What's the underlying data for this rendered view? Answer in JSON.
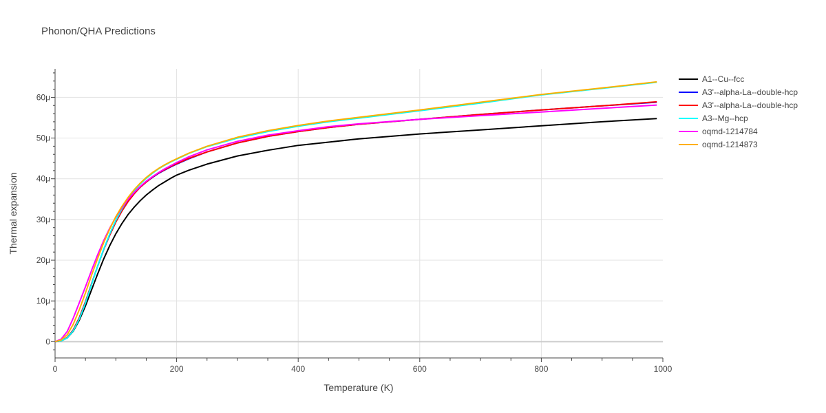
{
  "chart_data": {
    "type": "line",
    "title": "Phonon/QHA Predictions",
    "xlabel": "Temperature (K)",
    "ylabel": "Thermal expansion",
    "xlim": [
      0,
      1000
    ],
    "ylim": [
      -4,
      67
    ],
    "x_ticks": [
      0,
      200,
      400,
      600,
      800,
      1000
    ],
    "x_tick_labels": [
      "0",
      "200",
      "400",
      "600",
      "800",
      "1000"
    ],
    "y_ticks": [
      0,
      10,
      20,
      30,
      40,
      50,
      60
    ],
    "y_tick_labels": [
      "0",
      "10μ",
      "20μ",
      "30μ",
      "40μ",
      "50μ",
      "60μ"
    ],
    "y_unit": "1e-6 per K (μ)",
    "grid": true,
    "legend_position": "right",
    "x": [
      0,
      10,
      20,
      30,
      40,
      50,
      60,
      70,
      80,
      90,
      100,
      110,
      120,
      130,
      140,
      150,
      160,
      170,
      180,
      190,
      200,
      220,
      250,
      300,
      350,
      400,
      450,
      500,
      600,
      700,
      800,
      900,
      990
    ],
    "series": [
      {
        "name": "A1--Cu--fcc",
        "color": "#000000",
        "values": [
          0,
          0.2,
          0.9,
          2.6,
          5.3,
          8.8,
          12.7,
          16.6,
          20.3,
          23.6,
          26.5,
          29.0,
          31.2,
          33.0,
          34.6,
          36.0,
          37.2,
          38.3,
          39.2,
          40.1,
          40.9,
          42.1,
          43.6,
          45.6,
          47.0,
          48.2,
          49.0,
          49.8,
          51.0,
          52.0,
          53.0,
          54.0,
          54.8
        ]
      },
      {
        "name": "A3'--alpha-La--double-hcp",
        "color": "#0000ff",
        "values": [
          0,
          0.2,
          1.0,
          2.9,
          5.9,
          9.8,
          14.2,
          18.5,
          22.6,
          26.2,
          29.4,
          32.1,
          34.4,
          36.3,
          37.9,
          39.2,
          40.3,
          41.3,
          42.1,
          42.9,
          43.6,
          44.9,
          46.6,
          48.8,
          50.4,
          51.6,
          52.6,
          53.4,
          54.6,
          55.8,
          56.9,
          57.9,
          58.8
        ]
      },
      {
        "name": "A3'--alpha-La--double-hcp",
        "color": "#ff0000",
        "values": [
          0,
          0.2,
          1.0,
          2.9,
          5.9,
          9.8,
          14.2,
          18.5,
          22.6,
          26.2,
          29.4,
          32.1,
          34.4,
          36.3,
          37.9,
          39.2,
          40.4,
          41.4,
          42.2,
          43.0,
          43.7,
          45.0,
          46.6,
          48.8,
          50.4,
          51.6,
          52.6,
          53.4,
          54.6,
          55.8,
          56.9,
          57.9,
          58.9
        ]
      },
      {
        "name": "A3--Mg--hcp",
        "color": "#00ffff",
        "values": [
          0,
          0.2,
          0.9,
          2.7,
          5.6,
          9.5,
          14.0,
          18.5,
          22.7,
          26.5,
          29.8,
          32.6,
          35.0,
          37.0,
          38.7,
          40.1,
          41.3,
          42.4,
          43.3,
          44.1,
          44.8,
          46.2,
          47.9,
          50.0,
          51.6,
          52.9,
          54.0,
          54.9,
          56.7,
          58.6,
          60.6,
          62.2,
          63.7
        ]
      },
      {
        "name": "oqmd-1214784",
        "color": "#ff00ff",
        "values": [
          0,
          0.6,
          2.5,
          5.8,
          9.6,
          13.5,
          17.5,
          21.3,
          24.8,
          27.9,
          30.6,
          32.9,
          34.9,
          36.6,
          38.1,
          39.4,
          40.5,
          41.5,
          42.4,
          43.2,
          44.0,
          45.4,
          47.1,
          49.2,
          50.7,
          51.8,
          52.8,
          53.5,
          54.6,
          55.5,
          56.4,
          57.3,
          58.1
        ]
      },
      {
        "name": "oqmd-1214873",
        "color": "#ffb000",
        "values": [
          0,
          0.4,
          1.7,
          4.3,
          7.9,
          12.0,
          16.3,
          20.4,
          24.3,
          27.7,
          30.7,
          33.2,
          35.4,
          37.3,
          38.9,
          40.3,
          41.5,
          42.5,
          43.4,
          44.2,
          44.9,
          46.3,
          48.0,
          50.2,
          51.8,
          53.1,
          54.2,
          55.1,
          56.9,
          58.8,
          60.7,
          62.3,
          63.8
        ]
      }
    ]
  }
}
